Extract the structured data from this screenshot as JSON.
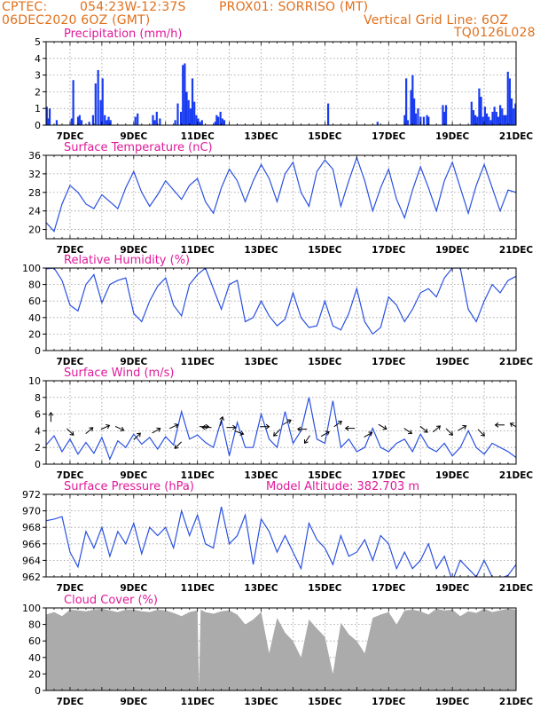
{
  "header": {
    "org": "CPTEC:",
    "coords": "054:23W-12:37S",
    "station": "PROX01: SORRISO (MT)",
    "run": "06DEC2020 6OZ (GMT)",
    "grid": "Vertical Grid Line: 6OZ",
    "code": "TQ0126L028"
  },
  "colors": {
    "header": "#e0701c",
    "panel_title": "#e0199a",
    "precip": "#1a3cf0",
    "line": "#2a50e0",
    "wind": "#2a50e0",
    "cloud": "#ababab",
    "grid": "#9a9a9a"
  },
  "x_axis": {
    "ticks": [
      "7DEC",
      "9DEC",
      "11DEC",
      "13DEC",
      "15DEC",
      "17DEC",
      "19DEC",
      "21DEC"
    ],
    "tick_days": [
      1,
      3,
      5,
      7,
      9,
      11,
      13,
      15
    ],
    "range_days": [
      0.25,
      15
    ],
    "note": "x in days since 6DEC2020 00Z"
  },
  "chart_data": [
    {
      "id": "precip",
      "type": "bar",
      "title": "Precipitation (mm/h)",
      "ylim": [
        0,
        5
      ],
      "yticks": [
        0,
        1,
        2,
        3,
        4,
        5
      ],
      "grid": true,
      "x": [
        0.27,
        0.31,
        0.36,
        0.58,
        1.05,
        1.1,
        1.25,
        1.3,
        1.36,
        1.6,
        1.72,
        1.8,
        1.88,
        1.96,
        2.02,
        2.09,
        2.15,
        2.21,
        2.27,
        3.05,
        3.12,
        3.6,
        3.66,
        3.72,
        3.82,
        4.3,
        4.38,
        4.48,
        4.54,
        4.6,
        4.66,
        4.72,
        4.78,
        4.84,
        4.9,
        4.96,
        5.02,
        5.08,
        5.14,
        5.55,
        5.6,
        5.65,
        5.72,
        5.78,
        5.84,
        9.1,
        10.65,
        11.5,
        11.55,
        11.6,
        11.7,
        11.75,
        11.8,
        11.85,
        11.92,
        12.0,
        12.1,
        12.2,
        12.25,
        12.7,
        12.76,
        12.8,
        13.6,
        13.66,
        13.72,
        13.78,
        13.84,
        13.9,
        13.96,
        14.02,
        14.08,
        14.14,
        14.2,
        14.26,
        14.32,
        14.38,
        14.44,
        14.5,
        14.56,
        14.62,
        14.68,
        14.74,
        14.8,
        14.86,
        14.92,
        14.98
      ],
      "values": [
        1.1,
        0.4,
        1.0,
        0.3,
        0.4,
        2.7,
        0.5,
        0.6,
        0.3,
        0.2,
        0.6,
        2.5,
        3.3,
        1.5,
        2.8,
        0.6,
        0.3,
        0.5,
        0.3,
        0.5,
        0.7,
        0.6,
        0.3,
        0.8,
        0.4,
        0.3,
        1.3,
        0.8,
        3.6,
        3.7,
        2.0,
        1.5,
        1.0,
        2.8,
        1.4,
        0.6,
        0.4,
        0.2,
        0.3,
        0.2,
        0.6,
        0.5,
        0.8,
        0.4,
        0.3,
        1.3,
        0.2,
        0.6,
        2.8,
        0.3,
        2.1,
        3.0,
        1.6,
        0.7,
        1.0,
        0.5,
        0.5,
        0.6,
        0.5,
        1.2,
        0.8,
        1.2,
        1.4,
        0.9,
        0.6,
        0.5,
        2.2,
        1.7,
        0.5,
        1.1,
        0.7,
        0.5,
        0.3,
        0.8,
        1.1,
        0.8,
        0.5,
        1.2,
        1.0,
        0.6,
        0.6,
        3.2,
        2.8,
        1.6,
        1.0,
        1.3
      ]
    },
    {
      "id": "temp",
      "type": "line",
      "title": "Surface Temperature (nC)",
      "ylim": [
        18,
        36
      ],
      "yticks": [
        20,
        24,
        28,
        32,
        36
      ],
      "grid": true,
      "x": [
        0.25,
        0.5,
        0.75,
        1.0,
        1.25,
        1.5,
        1.75,
        2.0,
        2.25,
        2.5,
        2.75,
        3.0,
        3.25,
        3.5,
        3.75,
        4.0,
        4.25,
        4.5,
        4.75,
        5.0,
        5.25,
        5.5,
        5.75,
        6.0,
        6.25,
        6.5,
        6.75,
        7.0,
        7.25,
        7.5,
        7.75,
        8.0,
        8.25,
        8.5,
        8.75,
        9.0,
        9.25,
        9.5,
        9.75,
        10.0,
        10.25,
        10.5,
        10.75,
        11.0,
        11.25,
        11.5,
        11.75,
        12.0,
        12.25,
        12.5,
        12.75,
        13.0,
        13.25,
        13.5,
        13.75,
        14.0,
        14.25,
        14.5,
        14.75,
        15.0
      ],
      "values": [
        21.5,
        19.6,
        25.5,
        29.5,
        28.0,
        25.5,
        24.5,
        27.5,
        26.0,
        24.5,
        29.0,
        32.5,
        28.0,
        25.0,
        27.5,
        30.5,
        28.5,
        26.5,
        29.5,
        31.0,
        26.0,
        23.5,
        29.0,
        33.0,
        30.5,
        26.0,
        30.5,
        34.0,
        31.0,
        26.0,
        32.0,
        34.5,
        28.0,
        25.0,
        32.5,
        35.0,
        33.0,
        25.0,
        30.5,
        35.5,
        30.5,
        24.0,
        29.0,
        33.0,
        26.5,
        22.5,
        28.5,
        33.5,
        29.0,
        24.0,
        30.5,
        34.5,
        29.0,
        23.5,
        29.5,
        34.0,
        29.0,
        24.0,
        28.5,
        28.0
      ]
    },
    {
      "id": "rh",
      "type": "line",
      "title": "Relative Humidity (%)",
      "ylim": [
        0,
        100
      ],
      "yticks": [
        0,
        20,
        40,
        60,
        80,
        100
      ],
      "grid": true,
      "x": [
        0.25,
        0.5,
        0.75,
        1.0,
        1.25,
        1.5,
        1.75,
        2.0,
        2.25,
        2.5,
        2.75,
        3.0,
        3.25,
        3.5,
        3.75,
        4.0,
        4.25,
        4.5,
        4.75,
        5.0,
        5.25,
        5.5,
        5.75,
        6.0,
        6.25,
        6.5,
        6.75,
        7.0,
        7.25,
        7.5,
        7.75,
        8.0,
        8.25,
        8.5,
        8.75,
        9.0,
        9.25,
        9.5,
        9.75,
        10.0,
        10.25,
        10.5,
        10.75,
        11.0,
        11.25,
        11.5,
        11.75,
        12.0,
        12.25,
        12.5,
        12.75,
        13.0,
        13.25,
        13.5,
        13.75,
        14.0,
        14.25,
        14.5,
        14.75,
        15.0
      ],
      "values": [
        99,
        100,
        85,
        55,
        48,
        80,
        92,
        58,
        80,
        85,
        88,
        45,
        35,
        60,
        78,
        88,
        55,
        42,
        80,
        92,
        100,
        75,
        50,
        80,
        85,
        35,
        40,
        60,
        42,
        30,
        38,
        70,
        40,
        28,
        30,
        60,
        30,
        25,
        45,
        75,
        35,
        20,
        28,
        65,
        55,
        35,
        50,
        70,
        75,
        65,
        88,
        100,
        100,
        50,
        35,
        60,
        80,
        70,
        85,
        90
      ]
    },
    {
      "id": "wind",
      "type": "line",
      "title": "Surface Wind (m/s)",
      "ylim": [
        0,
        10
      ],
      "yticks": [
        0,
        2,
        4,
        6,
        8,
        10
      ],
      "grid": true,
      "x": [
        0.25,
        0.5,
        0.75,
        1.0,
        1.25,
        1.5,
        1.75,
        2.0,
        2.25,
        2.5,
        2.75,
        3.0,
        3.25,
        3.5,
        3.75,
        4.0,
        4.25,
        4.5,
        4.75,
        5.0,
        5.25,
        5.5,
        5.75,
        6.0,
        6.25,
        6.5,
        6.75,
        7.0,
        7.25,
        7.5,
        7.75,
        8.0,
        8.25,
        8.5,
        8.75,
        9.0,
        9.25,
        9.5,
        9.75,
        10.0,
        10.25,
        10.5,
        10.75,
        11.0,
        11.25,
        11.5,
        11.75,
        12.0,
        12.25,
        12.5,
        12.75,
        13.0,
        13.25,
        13.5,
        13.75,
        14.0,
        14.25,
        14.5,
        14.75,
        15.0
      ],
      "values": [
        2.3,
        3.4,
        1.5,
        3.0,
        1.2,
        2.6,
        1.3,
        3.2,
        0.6,
        2.8,
        2.0,
        3.6,
        2.4,
        3.2,
        1.8,
        3.3,
        2.3,
        6.3,
        3.0,
        3.5,
        2.6,
        2.0,
        5.3,
        1.0,
        5.0,
        2.0,
        2.0,
        6.0,
        3.0,
        2.0,
        6.3,
        2.5,
        4.0,
        8.0,
        3.0,
        2.5,
        7.6,
        2.0,
        3.0,
        1.5,
        2.0,
        4.3,
        2.0,
        1.5,
        2.5,
        3.0,
        1.5,
        3.6,
        2.0,
        1.5,
        2.5,
        1.0,
        2.0,
        4.0,
        2.0,
        1.2,
        2.5,
        2.0,
        1.5,
        0.8
      ],
      "arrows": [
        {
          "x": 0.4,
          "y": 5.6,
          "dir": 0
        },
        {
          "x": 1.0,
          "y": 3.9,
          "dir": 135
        },
        {
          "x": 1.6,
          "y": 4.0,
          "dir": 50
        },
        {
          "x": 2.1,
          "y": 4.4,
          "dir": 65
        },
        {
          "x": 2.55,
          "y": 4.3,
          "dir": 115
        },
        {
          "x": 3.1,
          "y": 3.3,
          "dir": 45
        },
        {
          "x": 3.7,
          "y": 4.0,
          "dir": 60
        },
        {
          "x": 4.25,
          "y": 4.5,
          "dir": 65
        },
        {
          "x": 4.4,
          "y": 2.3,
          "dir": 225
        },
        {
          "x": 5.2,
          "y": 4.5,
          "dir": 90
        },
        {
          "x": 5.3,
          "y": 4.4,
          "dir": 270
        },
        {
          "x": 5.75,
          "y": 5.1,
          "dir": 15
        },
        {
          "x": 6.05,
          "y": 4.4,
          "dir": 90
        },
        {
          "x": 6.3,
          "y": 3.8,
          "dir": 110
        },
        {
          "x": 7.1,
          "y": 4.5,
          "dir": 90
        },
        {
          "x": 7.5,
          "y": 3.8,
          "dir": 225
        },
        {
          "x": 7.8,
          "y": 5.0,
          "dir": 60
        },
        {
          "x": 8.3,
          "y": 4.2,
          "dir": 270
        },
        {
          "x": 8.45,
          "y": 3.0,
          "dir": 215
        },
        {
          "x": 9.0,
          "y": 3.6,
          "dir": 60
        },
        {
          "x": 9.4,
          "y": 4.8,
          "dir": 55
        },
        {
          "x": 9.8,
          "y": 4.3,
          "dir": 270
        },
        {
          "x": 10.35,
          "y": 3.5,
          "dir": 60
        },
        {
          "x": 10.8,
          "y": 4.5,
          "dir": 120
        },
        {
          "x": 11.6,
          "y": 4.0,
          "dir": 125
        },
        {
          "x": 12.1,
          "y": 4.2,
          "dir": 130
        },
        {
          "x": 12.5,
          "y": 4.2,
          "dir": 50
        },
        {
          "x": 12.9,
          "y": 3.9,
          "dir": 135
        },
        {
          "x": 13.3,
          "y": 4.3,
          "dir": 60
        },
        {
          "x": 13.9,
          "y": 3.8,
          "dir": 135
        },
        {
          "x": 14.5,
          "y": 4.7,
          "dir": 270
        },
        {
          "x": 14.95,
          "y": 4.6,
          "dir": 300
        }
      ]
    },
    {
      "id": "pressure",
      "type": "line",
      "title": "Surface Pressure (hPa)",
      "ylim": [
        962,
        972
      ],
      "yticks": [
        962,
        964,
        966,
        968,
        970,
        972
      ],
      "grid": true,
      "annotation": "Model Altitude: 382.703 m",
      "x": [
        0.25,
        0.5,
        0.75,
        1.0,
        1.25,
        1.5,
        1.75,
        2.0,
        2.25,
        2.5,
        2.75,
        3.0,
        3.25,
        3.5,
        3.75,
        4.0,
        4.25,
        4.5,
        4.75,
        5.0,
        5.25,
        5.5,
        5.75,
        6.0,
        6.25,
        6.5,
        6.75,
        7.0,
        7.25,
        7.5,
        7.75,
        8.0,
        8.25,
        8.5,
        8.75,
        9.0,
        9.25,
        9.5,
        9.75,
        10.0,
        10.25,
        10.5,
        10.75,
        11.0,
        11.25,
        11.5,
        11.75,
        12.0,
        12.25,
        12.5,
        12.75,
        13.0,
        13.25,
        13.5,
        13.75,
        14.0,
        14.25,
        14.5,
        14.75,
        15.0
      ],
      "values": [
        968.8,
        969.0,
        969.3,
        965.0,
        963.2,
        967.5,
        965.5,
        968.0,
        964.5,
        967.5,
        966.0,
        968.5,
        964.8,
        968.0,
        967.0,
        968.0,
        965.5,
        970.0,
        967.0,
        969.5,
        966.0,
        965.5,
        970.5,
        966.0,
        967.0,
        969.5,
        963.5,
        969.0,
        967.5,
        965.0,
        967.0,
        965.0,
        963.0,
        968.5,
        966.5,
        965.5,
        963.5,
        967.0,
        964.5,
        965.0,
        966.5,
        964.0,
        967.0,
        966.0,
        963.0,
        965.0,
        963.0,
        964.0,
        966.0,
        963.0,
        964.5,
        961.5,
        964.0,
        963.0,
        962.0,
        964.0,
        962.0,
        961.8,
        962.2,
        963.5
      ]
    },
    {
      "id": "cloud",
      "type": "area",
      "title": "Cloud Cover (%)",
      "ylim": [
        0,
        100
      ],
      "yticks": [
        0,
        20,
        40,
        60,
        80,
        100
      ],
      "grid": true,
      "x": [
        0.25,
        0.5,
        0.75,
        1.0,
        1.25,
        1.5,
        1.75,
        2.0,
        2.25,
        2.5,
        2.75,
        3.0,
        3.25,
        3.5,
        3.75,
        4.0,
        4.25,
        4.5,
        4.75,
        5.0,
        5.05,
        5.1,
        5.25,
        5.5,
        5.75,
        6.0,
        6.25,
        6.5,
        6.75,
        7.0,
        7.25,
        7.5,
        7.75,
        8.0,
        8.25,
        8.5,
        8.75,
        9.0,
        9.25,
        9.5,
        9.75,
        10.0,
        10.25,
        10.5,
        10.75,
        11.0,
        11.25,
        11.5,
        11.75,
        12.0,
        12.25,
        12.5,
        12.75,
        13.0,
        13.25,
        13.5,
        13.75,
        14.0,
        14.25,
        14.5,
        14.75,
        15.0
      ],
      "values": [
        92,
        95,
        90,
        98,
        97,
        96,
        98,
        99,
        97,
        95,
        98,
        98,
        96,
        95,
        98,
        97,
        94,
        90,
        95,
        97,
        5,
        98,
        95,
        93,
        96,
        97,
        92,
        80,
        86,
        95,
        45,
        88,
        70,
        60,
        40,
        86,
        75,
        65,
        20,
        82,
        68,
        60,
        45,
        88,
        92,
        95,
        80,
        97,
        98,
        96,
        92,
        99,
        97,
        98,
        90,
        96,
        94,
        99,
        95,
        97,
        99,
        98
      ]
    }
  ]
}
